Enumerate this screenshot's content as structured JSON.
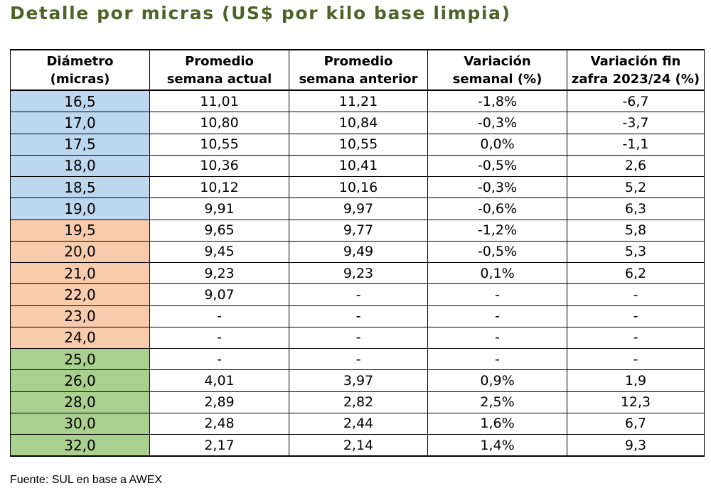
{
  "title": "Detalle por micras (US$ por kilo base limpia)",
  "colors": {
    "title": "#4f6228",
    "blue": "#bdd7ee",
    "orange": "#f8cbad",
    "green": "#a9d08e"
  },
  "table": {
    "headers": [
      [
        "Diámetro",
        "(micras)"
      ],
      [
        "Promedio",
        "semana actual"
      ],
      [
        "Promedio",
        "semana anterior"
      ],
      [
        "Variación",
        "semanal (%)"
      ],
      [
        "Variación fin",
        "zafra 2023/24 (%)"
      ]
    ],
    "rows": [
      {
        "group": "blue",
        "cells": [
          "16,5",
          "11,01",
          "11,21",
          "-1,8%",
          "-6,7"
        ]
      },
      {
        "group": "blue",
        "cells": [
          "17,0",
          "10,80",
          "10,84",
          "-0,3%",
          "-3,7"
        ]
      },
      {
        "group": "blue",
        "cells": [
          "17,5",
          "10,55",
          "10,55",
          "0,0%",
          "-1,1"
        ]
      },
      {
        "group": "blue",
        "cells": [
          "18,0",
          "10,36",
          "10,41",
          "-0,5%",
          "2,6"
        ]
      },
      {
        "group": "blue",
        "cells": [
          "18,5",
          "10,12",
          "10,16",
          "-0,3%",
          "5,2"
        ]
      },
      {
        "group": "blue",
        "cells": [
          "19,0",
          "9,91",
          "9,97",
          "-0,6%",
          "6,3"
        ]
      },
      {
        "group": "orange",
        "cells": [
          "19,5",
          "9,65",
          "9,77",
          "-1,2%",
          "5,8"
        ]
      },
      {
        "group": "orange",
        "cells": [
          "20,0",
          "9,45",
          "9,49",
          "-0,5%",
          "5,3"
        ]
      },
      {
        "group": "orange",
        "cells": [
          "21,0",
          "9,23",
          "9,23",
          "0,1%",
          "6,2"
        ]
      },
      {
        "group": "orange",
        "cells": [
          "22,0",
          "9,07",
          "-",
          "-",
          "-"
        ]
      },
      {
        "group": "orange",
        "cells": [
          "23,0",
          "-",
          "-",
          "-",
          "-"
        ]
      },
      {
        "group": "orange",
        "cells": [
          "24,0",
          "-",
          "-",
          "-",
          "-"
        ]
      },
      {
        "group": "green",
        "cells": [
          "25,0",
          "-",
          "-",
          "-",
          "-"
        ]
      },
      {
        "group": "green",
        "cells": [
          "26,0",
          "4,01",
          "3,97",
          "0,9%",
          "1,9"
        ]
      },
      {
        "group": "green",
        "cells": [
          "28,0",
          "2,89",
          "2,82",
          "2,5%",
          "12,3"
        ]
      },
      {
        "group": "green",
        "cells": [
          "30,0",
          "2,48",
          "2,44",
          "1,6%",
          "6,7"
        ]
      },
      {
        "group": "green",
        "cells": [
          "32,0",
          "2,17",
          "2,14",
          "1,4%",
          "9,3"
        ]
      }
    ]
  },
  "source": "Fuente: SUL en base a AWEX"
}
